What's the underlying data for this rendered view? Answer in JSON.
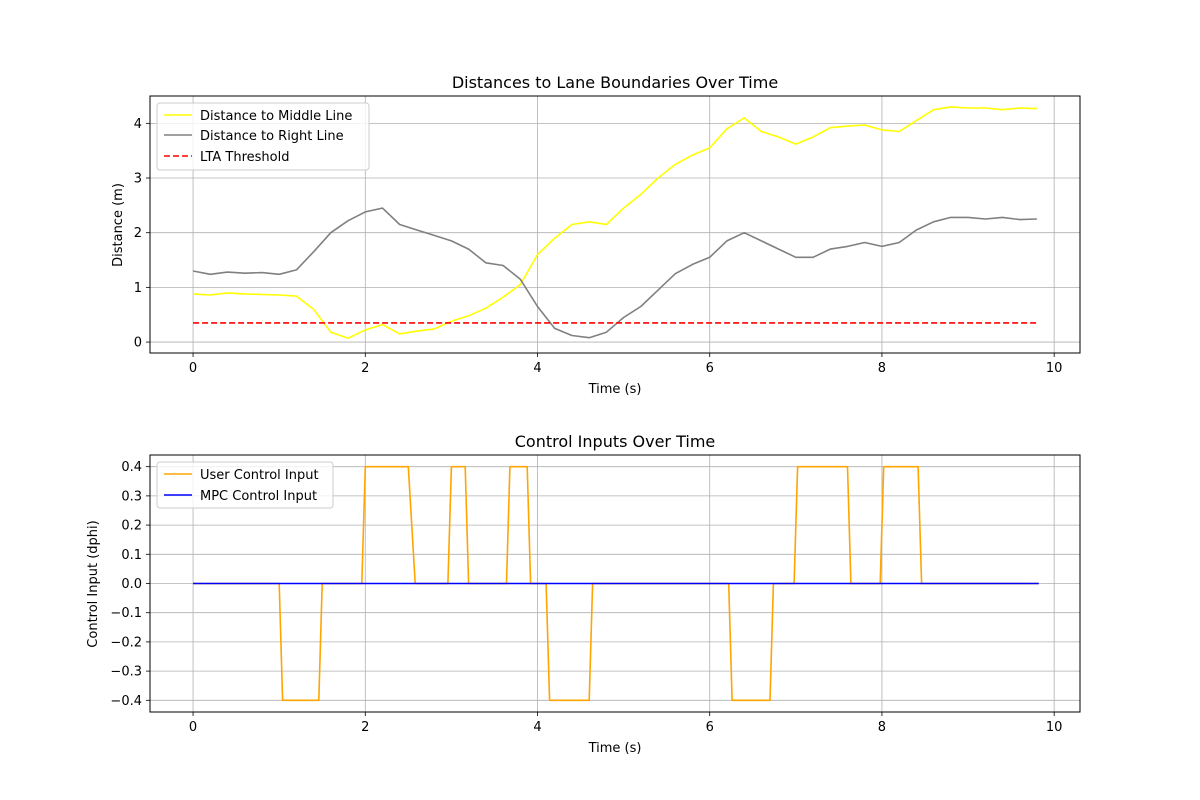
{
  "chart_data": [
    {
      "type": "line",
      "title": "Distances to Lane Boundaries Over Time",
      "xlabel": "Time (s)",
      "ylabel": "Distance (m)",
      "xlim": [
        -0.5,
        10.3
      ],
      "ylim": [
        -0.2,
        4.5
      ],
      "xticks": [
        0,
        2,
        4,
        6,
        8,
        10
      ],
      "yticks": [
        0,
        1,
        2,
        3,
        4
      ],
      "xtick_labels": [
        "0",
        "2",
        "4",
        "6",
        "8",
        "10"
      ],
      "ytick_labels": [
        "0",
        "1",
        "2",
        "3",
        "4"
      ],
      "grid": true,
      "legend_position": "top-left",
      "series": [
        {
          "name": "Distance to Middle Line",
          "color": "#ffff00",
          "style": "solid",
          "points": [
            [
              0,
              0.88
            ],
            [
              0.2,
              0.86
            ],
            [
              0.4,
              0.9
            ],
            [
              0.6,
              0.88
            ],
            [
              0.8,
              0.87
            ],
            [
              1.0,
              0.86
            ],
            [
              1.2,
              0.84
            ],
            [
              1.4,
              0.6
            ],
            [
              1.6,
              0.18
            ],
            [
              1.8,
              0.07
            ],
            [
              2.0,
              0.22
            ],
            [
              2.2,
              0.32
            ],
            [
              2.4,
              0.15
            ],
            [
              2.6,
              0.2
            ],
            [
              2.8,
              0.24
            ],
            [
              3.0,
              0.38
            ],
            [
              3.2,
              0.48
            ],
            [
              3.4,
              0.62
            ],
            [
              3.6,
              0.82
            ],
            [
              3.8,
              1.05
            ],
            [
              4.0,
              1.6
            ],
            [
              4.2,
              1.9
            ],
            [
              4.4,
              2.15
            ],
            [
              4.6,
              2.2
            ],
            [
              4.8,
              2.15
            ],
            [
              5.0,
              2.45
            ],
            [
              5.2,
              2.7
            ],
            [
              5.4,
              3.0
            ],
            [
              5.6,
              3.25
            ],
            [
              5.8,
              3.42
            ],
            [
              6.0,
              3.55
            ],
            [
              6.2,
              3.9
            ],
            [
              6.4,
              4.1
            ],
            [
              6.6,
              3.85
            ],
            [
              6.8,
              3.75
            ],
            [
              7.0,
              3.62
            ],
            [
              7.2,
              3.75
            ],
            [
              7.4,
              3.92
            ],
            [
              7.6,
              3.95
            ],
            [
              7.8,
              3.97
            ],
            [
              8.0,
              3.88
            ],
            [
              8.2,
              3.85
            ],
            [
              8.4,
              4.05
            ],
            [
              8.6,
              4.25
            ],
            [
              8.8,
              4.3
            ],
            [
              9.0,
              4.28
            ],
            [
              9.2,
              4.28
            ],
            [
              9.4,
              4.25
            ],
            [
              9.6,
              4.28
            ],
            [
              9.8,
              4.27
            ]
          ]
        },
        {
          "name": "Distance to Right Line",
          "color": "#808080",
          "style": "solid",
          "points": [
            [
              0,
              1.3
            ],
            [
              0.2,
              1.24
            ],
            [
              0.4,
              1.28
            ],
            [
              0.6,
              1.26
            ],
            [
              0.8,
              1.27
            ],
            [
              1.0,
              1.24
            ],
            [
              1.2,
              1.32
            ],
            [
              1.4,
              1.65
            ],
            [
              1.6,
              2.0
            ],
            [
              1.8,
              2.22
            ],
            [
              2.0,
              2.38
            ],
            [
              2.2,
              2.45
            ],
            [
              2.4,
              2.15
            ],
            [
              2.6,
              2.05
            ],
            [
              2.8,
              1.95
            ],
            [
              3.0,
              1.85
            ],
            [
              3.2,
              1.7
            ],
            [
              3.4,
              1.45
            ],
            [
              3.6,
              1.4
            ],
            [
              3.8,
              1.15
            ],
            [
              4.0,
              0.65
            ],
            [
              4.2,
              0.25
            ],
            [
              4.4,
              0.12
            ],
            [
              4.6,
              0.08
            ],
            [
              4.8,
              0.18
            ],
            [
              5.0,
              0.45
            ],
            [
              5.2,
              0.65
            ],
            [
              5.4,
              0.95
            ],
            [
              5.6,
              1.25
            ],
            [
              5.8,
              1.42
            ],
            [
              6.0,
              1.55
            ],
            [
              6.2,
              1.85
            ],
            [
              6.4,
              2.0
            ],
            [
              6.6,
              1.85
            ],
            [
              6.8,
              1.7
            ],
            [
              7.0,
              1.55
            ],
            [
              7.2,
              1.55
            ],
            [
              7.4,
              1.7
            ],
            [
              7.6,
              1.75
            ],
            [
              7.8,
              1.82
            ],
            [
              8.0,
              1.75
            ],
            [
              8.2,
              1.82
            ],
            [
              8.4,
              2.05
            ],
            [
              8.6,
              2.2
            ],
            [
              8.8,
              2.28
            ],
            [
              9.0,
              2.28
            ],
            [
              9.2,
              2.25
            ],
            [
              9.4,
              2.28
            ],
            [
              9.6,
              2.24
            ],
            [
              9.8,
              2.25
            ]
          ]
        },
        {
          "name": "LTA Threshold",
          "color": "#ff0000",
          "style": "dashed",
          "points": [
            [
              0,
              0.35
            ],
            [
              9.8,
              0.35
            ]
          ]
        }
      ]
    },
    {
      "type": "line",
      "title": "Control Inputs Over Time",
      "xlabel": "Time (s)",
      "ylabel": "Control Input (dphi)",
      "xlim": [
        -0.5,
        10.3
      ],
      "ylim": [
        -0.44,
        0.44
      ],
      "xticks": [
        0,
        2,
        4,
        6,
        8,
        10
      ],
      "yticks": [
        -0.4,
        -0.3,
        -0.2,
        -0.1,
        0.0,
        0.1,
        0.2,
        0.3,
        0.4
      ],
      "xtick_labels": [
        "0",
        "2",
        "4",
        "6",
        "8",
        "10"
      ],
      "ytick_labels": [
        "−0.4",
        "−0.3",
        "−0.2",
        "−0.1",
        "0.0",
        "0.1",
        "0.2",
        "0.3",
        "0.4"
      ],
      "grid": true,
      "legend_position": "top-left",
      "series": [
        {
          "name": "User Control Input",
          "color": "#ffa500",
          "style": "solid",
          "points": [
            [
              0,
              0
            ],
            [
              1.0,
              0
            ],
            [
              1.04,
              -0.4
            ],
            [
              1.46,
              -0.4
            ],
            [
              1.5,
              0
            ],
            [
              1.96,
              0
            ],
            [
              2.0,
              0.4
            ],
            [
              2.5,
              0.4
            ],
            [
              2.58,
              0
            ],
            [
              2.96,
              0
            ],
            [
              3.0,
              0.4
            ],
            [
              3.16,
              0.4
            ],
            [
              3.2,
              0
            ],
            [
              3.64,
              0
            ],
            [
              3.68,
              0.4
            ],
            [
              3.88,
              0.4
            ],
            [
              3.92,
              0
            ],
            [
              4.1,
              0
            ],
            [
              4.14,
              -0.4
            ],
            [
              4.6,
              -0.4
            ],
            [
              4.64,
              0
            ],
            [
              6.22,
              0
            ],
            [
              6.26,
              -0.4
            ],
            [
              6.7,
              -0.4
            ],
            [
              6.74,
              0
            ],
            [
              6.98,
              0
            ],
            [
              7.02,
              0.4
            ],
            [
              7.6,
              0.4
            ],
            [
              7.64,
              0
            ],
            [
              7.98,
              0
            ],
            [
              8.02,
              0.4
            ],
            [
              8.42,
              0.4
            ],
            [
              8.46,
              0
            ],
            [
              9.82,
              0
            ]
          ]
        },
        {
          "name": "MPC Control Input",
          "color": "#0000ff",
          "style": "solid",
          "points": [
            [
              0,
              0
            ],
            [
              9.82,
              0
            ]
          ]
        }
      ]
    }
  ]
}
